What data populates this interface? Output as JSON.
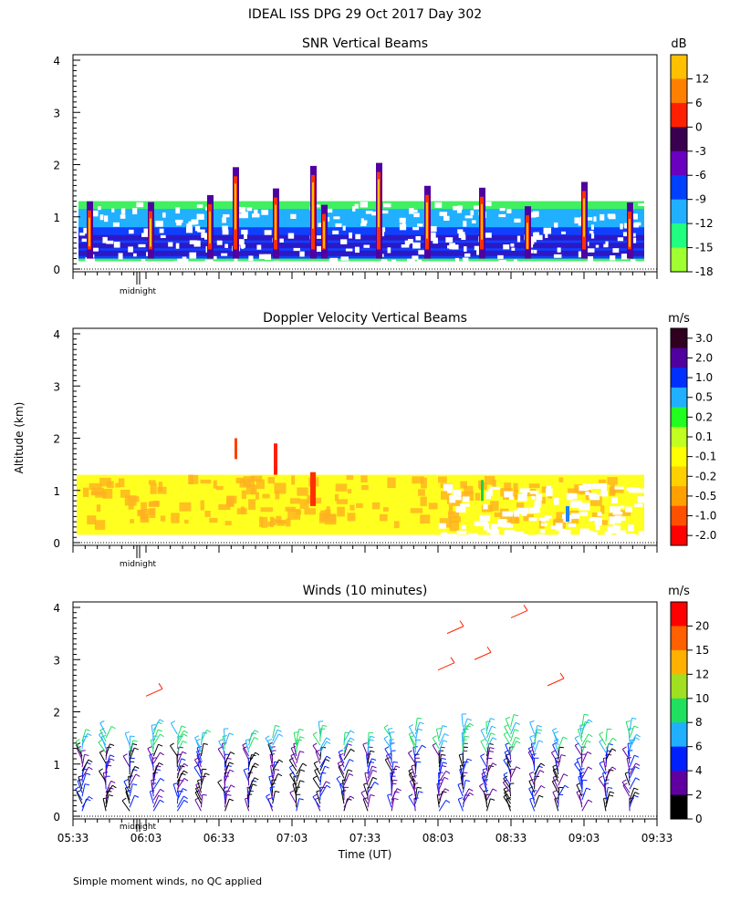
{
  "figure": {
    "title": "IDEAL ISS DPG  29 Oct 2017 Day 302",
    "ylabel": "Altitude (km)",
    "xlabel": "Time (UT)",
    "footnote": "Simple moment winds, no QC applied",
    "midnight_label": "midnight"
  },
  "chart_data": [
    {
      "type": "heatmap",
      "title": "SNR Vertical Beams",
      "ylabel": "Altitude (km)",
      "ylim": [
        0,
        4
      ],
      "yticks": [
        "0",
        "1",
        "2",
        "3",
        "4"
      ],
      "time_range": [
        "05:33",
        "09:33"
      ],
      "colorbar": {
        "unit": "dB",
        "labels": [
          "12",
          "6",
          "0",
          "-3",
          "-6",
          "-9",
          "-12",
          "-15",
          "-18"
        ],
        "colors": [
          "#ffc000",
          "#ff8000",
          "#ff2000",
          "#3a0050",
          "#6a00c0",
          "#0040ff",
          "#20b0ff",
          "#20ff80",
          "#a0ff30"
        ]
      },
      "echo_layers": [
        {
          "level": "-18 to -15 dB",
          "top_km": 1.3,
          "bottom_km": 0.15
        },
        {
          "level": "-12 dB",
          "top_km": 1.15,
          "bottom_km": 0.2
        },
        {
          "level": "-9 dB",
          "top_km": 0.8,
          "bottom_km": 0.2
        }
      ]
    },
    {
      "type": "heatmap",
      "title": "Doppler Velocity Vertical Beams",
      "ylabel": "Altitude (km)",
      "ylim": [
        0,
        4
      ],
      "yticks": [
        "0",
        "1",
        "2",
        "3",
        "4"
      ],
      "time_range": [
        "05:33",
        "09:33"
      ],
      "colorbar": {
        "unit": "m/s",
        "labels": [
          "3.0",
          "2.0",
          "1.0",
          "0.5",
          "0.2",
          "0.1",
          "-0.1",
          "-0.2",
          "-0.5",
          "-1.0",
          "-2.0"
        ],
        "colors": [
          "#300020",
          "#5000a0",
          "#0030ff",
          "#20b0ff",
          "#20ff20",
          "#c0ff20",
          "#ffff00",
          "#ffd000",
          "#ffa000",
          "#ff5000",
          "#ff0000"
        ]
      },
      "echo_layers": [
        {
          "level": "-0.1 m/s",
          "top_km": 1.3,
          "bottom_km": 0.15
        }
      ]
    },
    {
      "type": "scatter",
      "title": "Winds (10 minutes)",
      "ylabel": "Altitude (km)",
      "ylim": [
        0,
        4
      ],
      "yticks": [
        "0",
        "1",
        "2",
        "3",
        "4"
      ],
      "xticks": [
        "05:33",
        "06:03",
        "06:33",
        "07:03",
        "07:33",
        "08:03",
        "08:33",
        "09:03",
        "09:33"
      ],
      "xlabel": "Time (UT)",
      "colorbar": {
        "unit": "m/s",
        "labels": [
          "20",
          "15",
          "12",
          "10",
          "8",
          "6",
          "4",
          "2",
          "0"
        ],
        "colors": [
          "#ff0000",
          "#ff6000",
          "#ffb000",
          "#a0e020",
          "#20e060",
          "#20b0ff",
          "#0020ff",
          "#6000a0",
          "#000000"
        ]
      },
      "profile_count": 24,
      "profile_top_km": 1.8
    }
  ]
}
